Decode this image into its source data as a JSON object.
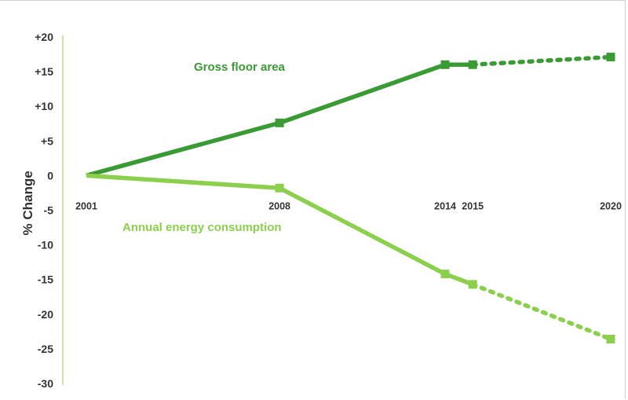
{
  "chart_data": {
    "type": "line",
    "ylabel": "% Change",
    "ylim": [
      -30,
      20
    ],
    "yticks": [
      20,
      15,
      10,
      5,
      0,
      -5,
      -10,
      -15,
      -20,
      -25,
      -30
    ],
    "ytick_labels": [
      "+20",
      "+15",
      "+10",
      "+5",
      "0",
      "-5",
      "-10",
      "-15",
      "-20",
      "-25",
      "-30"
    ],
    "xlim": [
      2001,
      2020
    ],
    "xticks": [
      2001,
      2008,
      2014,
      2015,
      2020
    ],
    "xtick_labels": [
      "2001",
      "2008",
      "2014",
      "2015",
      "2020"
    ],
    "axis_color": "#d6d27a",
    "series": [
      {
        "name": "Gross floor area",
        "color": "#3a9b35",
        "x": [
          2001,
          2008,
          2014,
          2015,
          2020
        ],
        "values": [
          0,
          7.6,
          16.0,
          16.0,
          17.1
        ],
        "solid_until_index": 3,
        "markers_at": [
          1,
          2,
          3,
          4
        ]
      },
      {
        "name": "Annual energy consumption",
        "color": "#8ccf4d",
        "x": [
          2001,
          2008,
          2014,
          2015,
          2020
        ],
        "values": [
          0,
          -1.8,
          -14.2,
          -15.7,
          -23.6
        ],
        "solid_until_index": 3,
        "markers_at": [
          1,
          2,
          3,
          4
        ]
      }
    ]
  }
}
